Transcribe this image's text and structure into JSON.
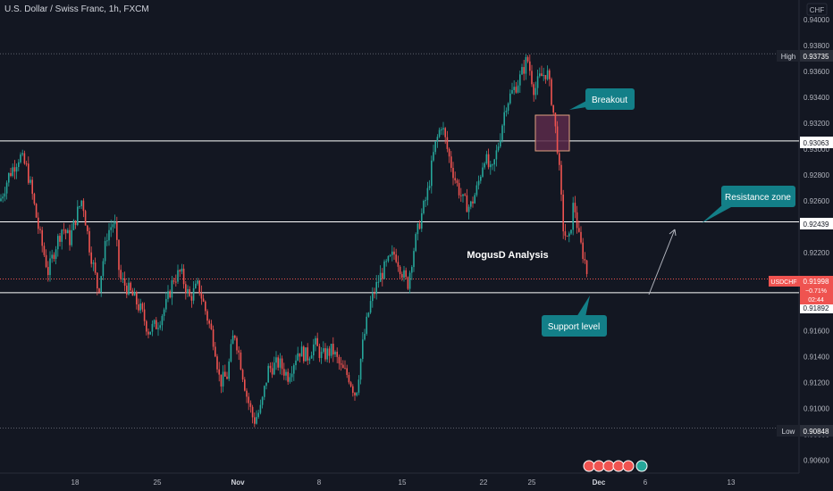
{
  "chart_data": {
    "type": "candlestick",
    "title": "U.S. Dollar / Swiss Franc, 1h, FXCM",
    "currency": "CHF",
    "symbol": "USDCHF",
    "last_price": "0.91998",
    "change": "−0.71%",
    "countdown": "02:44",
    "ylim": [
      0.905,
      0.9415
    ],
    "y_ticks": [
      "0.94000",
      "0.93800",
      "0.93600",
      "0.93400",
      "0.93200",
      "0.93000",
      "0.92800",
      "0.92600",
      "0.92400",
      "0.92200",
      "0.92000",
      "0.91800",
      "0.91600",
      "0.91400",
      "0.91200",
      "0.91000",
      "0.90800",
      "0.90600"
    ],
    "x_ticks": [
      "18",
      "25",
      "Nov",
      "8",
      "15",
      "22",
      "25",
      "Dec",
      "6",
      "13"
    ],
    "high": {
      "label": "High",
      "value": "0.93735"
    },
    "low": {
      "label": "Low",
      "value": "0.90848"
    },
    "levels": [
      "0.93063",
      "0.92439",
      "0.91892"
    ],
    "annotations": {
      "breakout": "Breakout",
      "resistance": "Resistance zone",
      "support": "Support level",
      "watermark": "MogusD Analysis"
    },
    "colors": {
      "up": "#26a69a",
      "down": "#ef5350",
      "background": "#131722",
      "callout": "#137f88",
      "box": "#5c2a4a"
    },
    "path_anchors": [
      [
        0,
        0.926
      ],
      [
        10,
        0.928
      ],
      [
        22,
        0.9295
      ],
      [
        30,
        0.9285
      ],
      [
        36,
        0.9265
      ],
      [
        44,
        0.9235
      ],
      [
        54,
        0.9205
      ],
      [
        62,
        0.9225
      ],
      [
        70,
        0.924
      ],
      [
        78,
        0.923
      ],
      [
        86,
        0.925
      ],
      [
        92,
        0.9262
      ],
      [
        100,
        0.9225
      ],
      [
        110,
        0.919
      ],
      [
        120,
        0.9235
      ],
      [
        128,
        0.9245
      ],
      [
        134,
        0.92
      ],
      [
        140,
        0.9195
      ],
      [
        150,
        0.9185
      ],
      [
        158,
        0.9175
      ],
      [
        166,
        0.916
      ],
      [
        176,
        0.9165
      ],
      [
        186,
        0.918
      ],
      [
        194,
        0.92
      ],
      [
        202,
        0.9205
      ],
      [
        212,
        0.9185
      ],
      [
        222,
        0.9195
      ],
      [
        232,
        0.917
      ],
      [
        240,
        0.915
      ],
      [
        246,
        0.912
      ],
      [
        254,
        0.9125
      ],
      [
        262,
        0.916
      ],
      [
        268,
        0.914
      ],
      [
        276,
        0.911
      ],
      [
        284,
        0.909
      ],
      [
        292,
        0.91
      ],
      [
        300,
        0.913
      ],
      [
        312,
        0.9135
      ],
      [
        322,
        0.9125
      ],
      [
        334,
        0.9145
      ],
      [
        344,
        0.914
      ],
      [
        352,
        0.915
      ],
      [
        360,
        0.914
      ],
      [
        372,
        0.9145
      ],
      [
        382,
        0.913
      ],
      [
        390,
        0.9125
      ],
      [
        398,
        0.911
      ],
      [
        406,
        0.915
      ],
      [
        414,
        0.918
      ],
      [
        424,
        0.92
      ],
      [
        432,
        0.921
      ],
      [
        442,
        0.922
      ],
      [
        450,
        0.9205
      ],
      [
        456,
        0.9195
      ],
      [
        462,
        0.922
      ],
      [
        470,
        0.9245
      ],
      [
        478,
        0.9265
      ],
      [
        486,
        0.93
      ],
      [
        494,
        0.932
      ],
      [
        502,
        0.9295
      ],
      [
        510,
        0.9275
      ],
      [
        518,
        0.926
      ],
      [
        526,
        0.9255
      ],
      [
        534,
        0.927
      ],
      [
        542,
        0.9295
      ],
      [
        550,
        0.928
      ],
      [
        558,
        0.9305
      ],
      [
        566,
        0.9335
      ],
      [
        574,
        0.9345
      ],
      [
        582,
        0.9355
      ],
      [
        590,
        0.937
      ],
      [
        598,
        0.9345
      ],
      [
        604,
        0.9355
      ],
      [
        612,
        0.936
      ],
      [
        618,
        0.9335
      ],
      [
        624,
        0.93
      ],
      [
        630,
        0.924
      ],
      [
        636,
        0.9225
      ],
      [
        642,
        0.926
      ],
      [
        648,
        0.923
      ],
      [
        654,
        0.9215
      ],
      [
        658,
        0.92
      ]
    ]
  }
}
